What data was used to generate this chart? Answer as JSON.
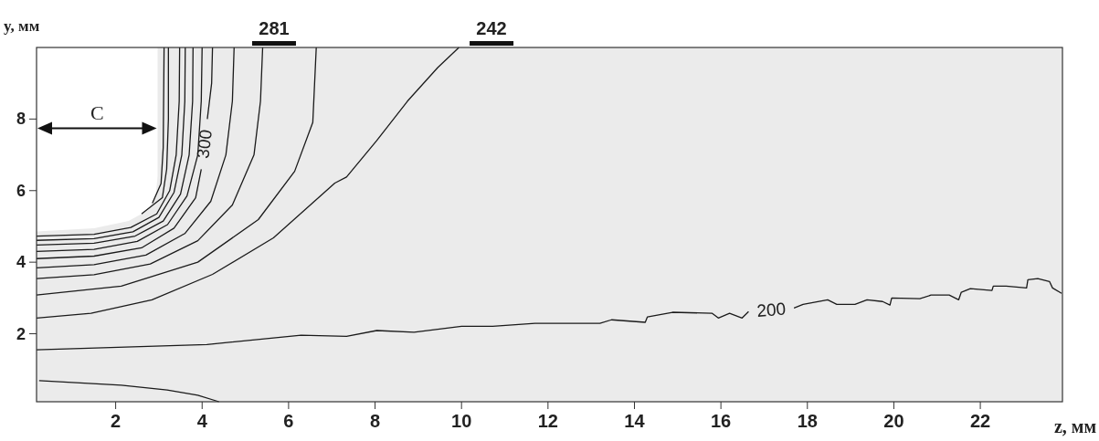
{
  "chart_data": {
    "type": "line",
    "xlabel": "z, мм",
    "ylabel": "y, мм",
    "xlim": [
      0.17,
      23.9
    ],
    "ylim": [
      0.1,
      10
    ],
    "xticks": [
      2,
      4,
      6,
      8,
      10,
      12,
      14,
      16,
      18,
      20,
      22
    ],
    "yticks": [
      2,
      4,
      6,
      8
    ],
    "grid": false,
    "annotations": [
      "C",
      "281",
      "242"
    ],
    "series": [
      {
        "name": "200",
        "color": "#1a1a1a",
        "x": [
          0.17,
          4.11,
          6.29,
          7.34,
          8.04,
          8.9,
          10.0,
          10.72,
          11.7,
          13.2,
          13.47,
          14.25,
          14.3,
          14.88,
          15.8,
          15.94,
          16.2,
          16.49,
          16.64,
          17.2,
          17.69,
          17.9,
          18.47,
          18.68,
          19.1,
          19.38,
          19.74,
          19.91,
          19.95,
          20.6,
          20.86,
          21.28,
          21.5,
          21.56,
          21.77,
          22.27,
          22.3,
          22.6,
          23.07,
          23.1,
          23.33,
          23.6,
          23.67,
          23.88
        ],
        "values": [
          1.55,
          1.7,
          1.96,
          1.93,
          2.09,
          2.04,
          2.21,
          2.21,
          2.29,
          2.29,
          2.39,
          2.32,
          2.47,
          2.6,
          2.57,
          2.44,
          2.57,
          2.44,
          2.62,
          null,
          2.72,
          2.82,
          2.95,
          2.82,
          2.82,
          2.95,
          2.9,
          2.8,
          3.0,
          2.98,
          3.08,
          3.08,
          2.95,
          3.16,
          3.26,
          3.21,
          3.33,
          3.33,
          3.28,
          3.51,
          3.54,
          3.46,
          3.28,
          3.13
        ]
      },
      {
        "color": "#1a1a1a",
        "x": [
          0.23,
          2.13,
          3.19,
          3.9,
          4.39
        ],
        "values": [
          0.69,
          0.56,
          0.43,
          0.28,
          0.1
        ]
      },
      {
        "color": "#1a1a1a",
        "x": [
          0.17,
          1.43,
          2.84,
          4.24,
          5.65,
          7.07,
          7.34,
          8.04,
          8.75,
          9.45,
          9.94
        ],
        "values": [
          2.44,
          2.57,
          2.95,
          3.66,
          4.68,
          6.21,
          6.38,
          7.4,
          8.5,
          9.44,
          10
        ]
      },
      {
        "color": "#1a1a1a",
        "x": [
          0.17,
          2.13,
          3.9,
          5.3,
          6.14,
          6.56,
          6.64
        ],
        "values": [
          3.08,
          3.33,
          4.0,
          5.19,
          6.54,
          7.91,
          10
        ]
      },
      {
        "color": "#1a1a1a",
        "x": [
          0.17,
          1.5,
          2.8,
          3.9,
          4.7,
          5.2,
          5.35,
          5.4
        ],
        "values": [
          3.54,
          3.65,
          3.95,
          4.6,
          5.6,
          7.0,
          8.5,
          10
        ]
      },
      {
        "color": "#1a1a1a",
        "x": [
          0.17,
          1.5,
          2.7,
          3.6,
          4.2,
          4.55,
          4.7,
          4.74
        ],
        "values": [
          3.84,
          3.93,
          4.2,
          4.8,
          5.7,
          7.0,
          8.5,
          10
        ]
      },
      {
        "name": "300",
        "color": "#1a1a1a",
        "x": [
          0.17,
          1.5,
          2.6,
          3.35,
          3.85,
          3.98,
          4.05,
          4.12,
          4.22,
          4.24
        ],
        "values": [
          4.1,
          4.17,
          4.4,
          4.95,
          5.8,
          6.6,
          null,
          8.0,
          9.0,
          10
        ]
      },
      {
        "color": "#1a1a1a",
        "x": [
          0.17,
          1.5,
          2.5,
          3.2,
          3.65,
          3.9,
          3.98,
          4.0
        ],
        "values": [
          4.3,
          4.36,
          4.58,
          5.05,
          5.85,
          7.0,
          8.5,
          10
        ]
      },
      {
        "color": "#1a1a1a",
        "x": [
          0.17,
          1.5,
          2.45,
          3.1,
          3.5,
          3.7,
          3.78,
          3.79
        ],
        "values": [
          4.48,
          4.53,
          4.73,
          5.15,
          5.9,
          7.0,
          8.5,
          10
        ]
      },
      {
        "color": "#1a1a1a",
        "x": [
          0.17,
          1.5,
          2.4,
          3.0,
          3.35,
          3.53,
          3.6,
          3.61
        ],
        "values": [
          4.61,
          4.66,
          4.85,
          5.25,
          5.95,
          7.0,
          8.5,
          10
        ]
      },
      {
        "color": "#1a1a1a",
        "x": [
          0.17,
          1.5,
          2.35,
          2.95,
          3.25,
          3.4,
          3.47,
          3.48
        ],
        "values": [
          4.73,
          4.78,
          4.97,
          5.35,
          6.0,
          7.0,
          8.5,
          10
        ]
      },
      {
        "color": "#1a1a1a",
        "x": [
          2.6,
          3.08,
          3.18,
          3.22,
          3.22
        ],
        "values": [
          5.35,
          5.8,
          6.6,
          8.0,
          10
        ]
      },
      {
        "color": "#1a1a1a",
        "x": [
          2.85,
          3.05,
          3.1,
          3.12
        ],
        "values": [
          5.65,
          6.2,
          7.2,
          10
        ]
      }
    ]
  }
}
